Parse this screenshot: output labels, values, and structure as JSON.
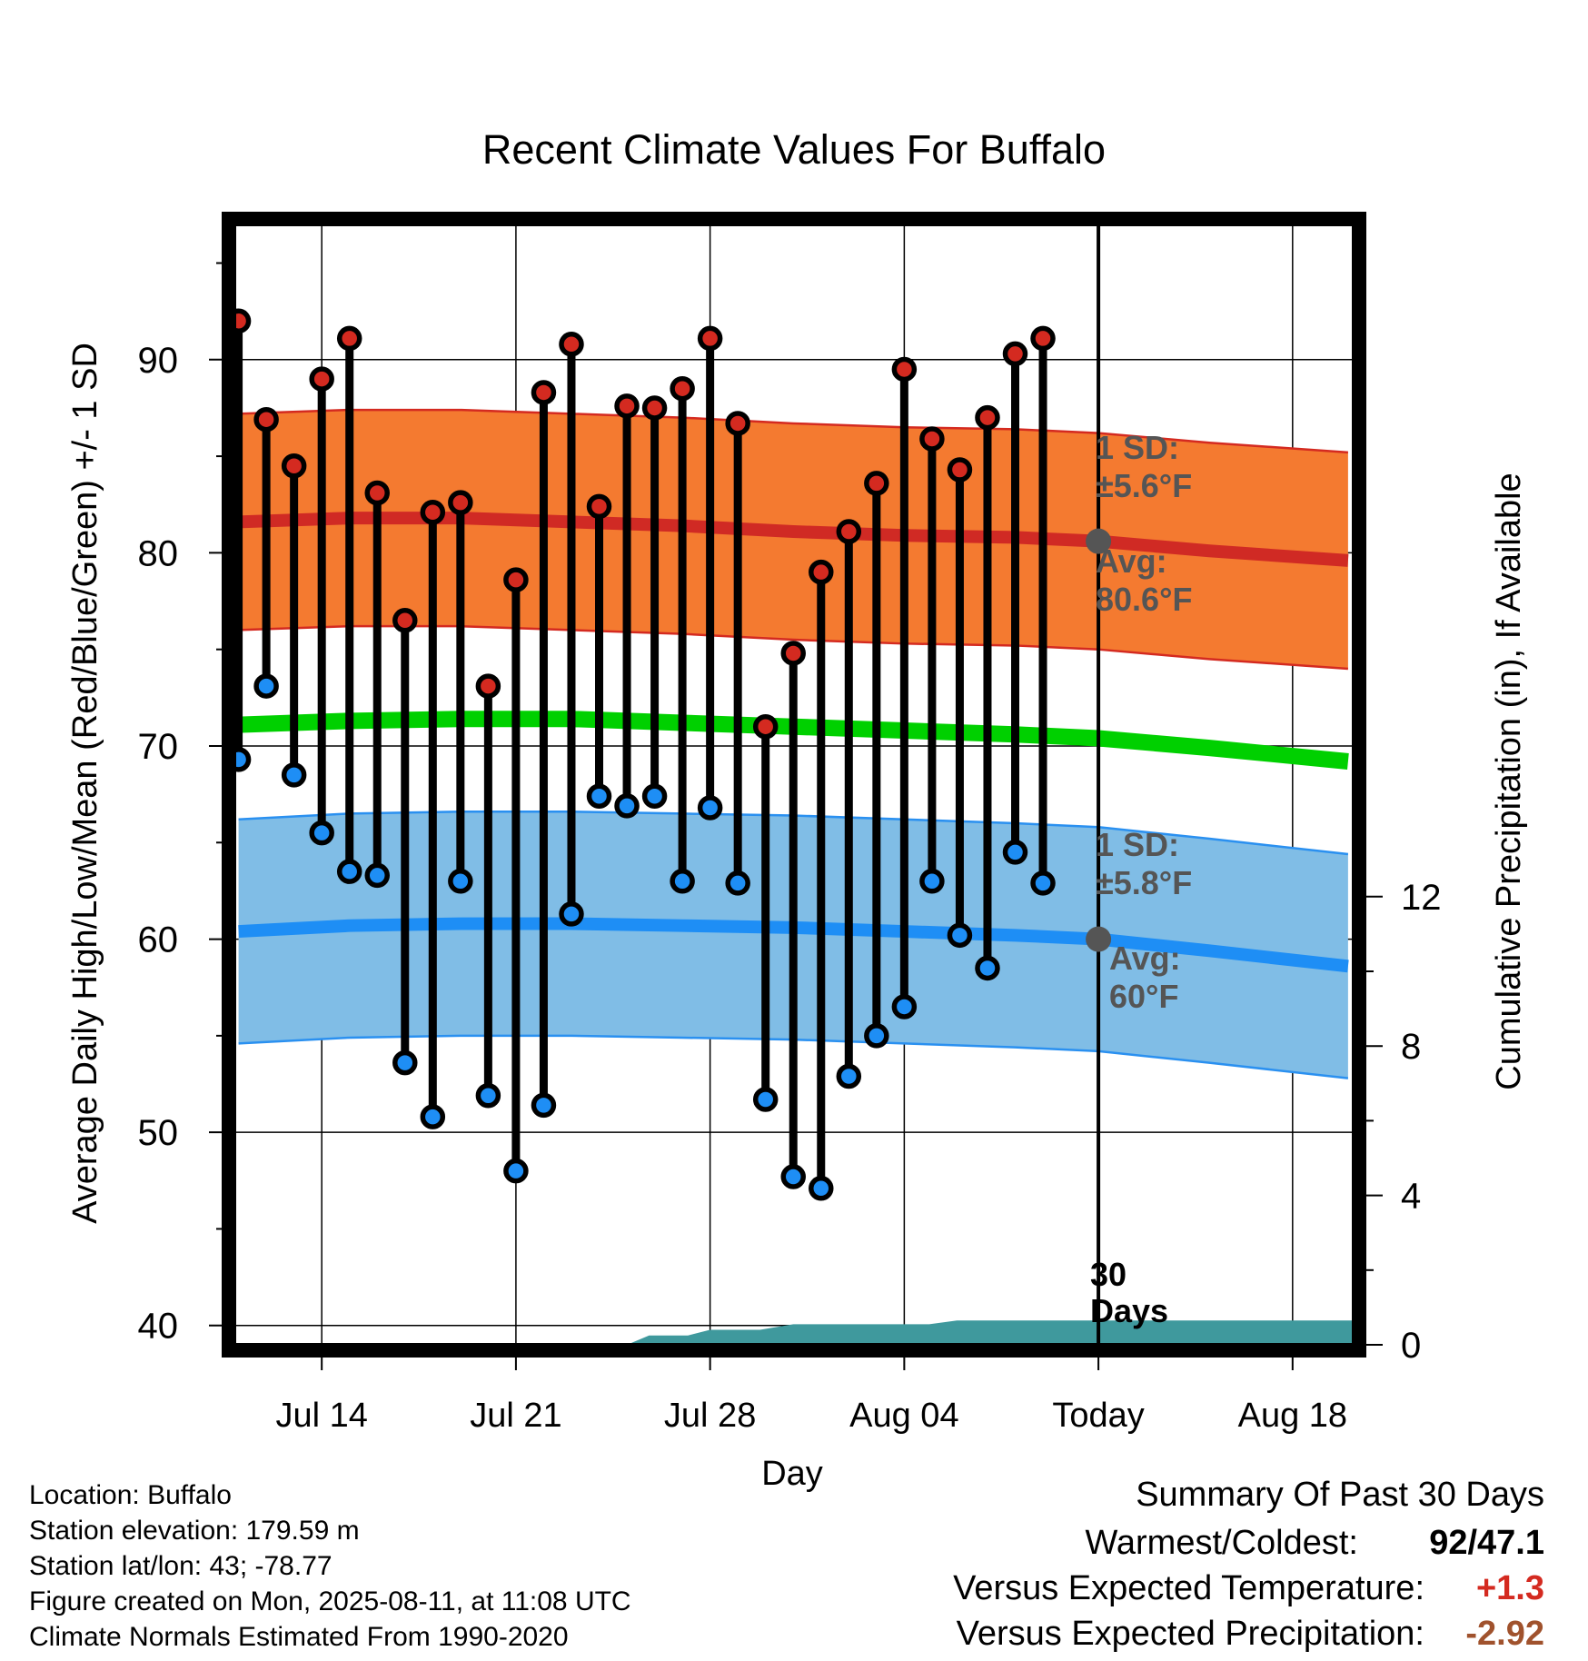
{
  "chart_data": {
    "type": "line",
    "title": "Recent Climate Values For Buffalo",
    "xlabel": "Day",
    "ylabel_left": "Average Daily High/Low/Mean (Red/Blue/Green) +/- 1 SD",
    "ylabel_right": "Cumulative Precipitation (in), If Available",
    "y_left_range": [
      39,
      97
    ],
    "y_left_ticks": [
      "40",
      "50",
      "60",
      "70",
      "80",
      "90"
    ],
    "y_right_range": [
      0,
      30
    ],
    "y_right_ticks": [
      "0",
      "4",
      "8",
      "12"
    ],
    "x_tick_labels": [
      {
        "day": 14,
        "label": "Jul 14"
      },
      {
        "day": 21,
        "label": "Jul 21"
      },
      {
        "day": 28,
        "label": "Jul 28"
      },
      {
        "day": 35,
        "label": "Aug 04"
      },
      {
        "day": 42,
        "label": "Today"
      },
      {
        "day": 49,
        "label": "Aug 18"
      }
    ],
    "x_range": [
      10.85,
      51.2
    ],
    "today_marker": {
      "day": 42,
      "label_line1": "30",
      "label_line2": "Days"
    },
    "observed": {
      "days": [
        11,
        12,
        13,
        14,
        15,
        16,
        17,
        18,
        19,
        20,
        21,
        22,
        23,
        24,
        25,
        26,
        27,
        28,
        29,
        30,
        31,
        32,
        33,
        34,
        35,
        36,
        37,
        38,
        39,
        40,
        41
      ],
      "highs": [
        92.0,
        86.9,
        84.5,
        89.0,
        91.1,
        83.1,
        76.5,
        82.1,
        82.6,
        73.1,
        78.6,
        88.3,
        90.8,
        82.4,
        87.6,
        87.5,
        88.5,
        91.1,
        86.7,
        71.0,
        74.8,
        79.0,
        81.1,
        83.6,
        89.5,
        85.9,
        84.3,
        87.0,
        90.3,
        91.1,
        null
      ],
      "lows": [
        69.3,
        73.1,
        68.5,
        65.5,
        63.5,
        63.3,
        53.6,
        50.8,
        63.0,
        51.9,
        48.0,
        51.4,
        61.3,
        67.4,
        66.9,
        67.4,
        63.0,
        66.8,
        62.9,
        51.7,
        47.7,
        47.1,
        52.9,
        55.0,
        56.5,
        63.0,
        60.2,
        58.5,
        64.5,
        62.9,
        null
      ]
    },
    "normals": {
      "days": [
        11,
        15,
        19,
        23,
        27,
        31,
        35,
        39,
        42,
        46,
        51
      ],
      "avg_high": [
        81.6,
        81.8,
        81.8,
        81.6,
        81.4,
        81.1,
        80.9,
        80.8,
        80.6,
        80.1,
        79.6
      ],
      "high_sd": 5.6,
      "avg_low": [
        60.4,
        60.7,
        60.8,
        60.8,
        60.7,
        60.6,
        60.4,
        60.2,
        60.0,
        59.4,
        58.6
      ],
      "low_sd": 5.8,
      "avg_mean": [
        71.1,
        71.3,
        71.4,
        71.4,
        71.2,
        71.0,
        70.8,
        70.6,
        70.4,
        69.9,
        69.2
      ]
    },
    "precip_cumulative": {
      "days": [
        10.85,
        25,
        25.8,
        26.5,
        27.2,
        28,
        29.8,
        31,
        31.9,
        32.9,
        33.9,
        34.9,
        35.9,
        36.9,
        37.9,
        38.9,
        39.9,
        40.9,
        41.9,
        42.9,
        43.9,
        44.9,
        45.9,
        46.9,
        47.9,
        48.9,
        49.9,
        50.9,
        51.2
      ],
      "values": [
        0,
        0,
        0.25,
        0.25,
        0.25,
        0.4,
        0.4,
        0.55,
        0.55,
        0.55,
        0.55,
        0.55,
        0.55,
        0.65,
        0.65,
        0.65,
        0.65,
        0.65,
        0.65,
        0.65,
        0.65,
        0.65,
        0.65,
        0.65,
        0.65,
        0.65,
        0.65,
        0.65,
        0.65
      ]
    },
    "annotations": {
      "high_sd_line1": "1 SD:",
      "high_sd_line2": "±5.6°F",
      "high_avg_line1": "Avg:",
      "high_avg_line2": "80.6°F",
      "low_sd_line1": "1 SD:",
      "low_sd_line2": "±5.8°F",
      "low_avg_line1": "Avg:",
      "low_avg_line2": "60°F"
    },
    "colors": {
      "high_band": "#f47a30",
      "high_edge": "#d42a20",
      "high_avg_line": "#d02a24",
      "low_band": "#80bde6",
      "low_edge": "#2a90f0",
      "low_avg_line": "#1e8ef5",
      "mean_line": "#00d000",
      "precip": "#3f999d",
      "high_dot": "#d42a20",
      "low_dot": "#1e8ef5",
      "annotation": "#555555"
    }
  },
  "footer": {
    "location": "Location: Buffalo",
    "elevation": "Station elevation: 179.59 m",
    "latlon": "Station lat/lon: 43; -78.77",
    "created": "Figure created on Mon, 2025-08-11, at 11:08 UTC",
    "normals_source": "Climate Normals Estimated From 1990-2020"
  },
  "summary": {
    "heading": "Summary Of Past 30 Days",
    "warmest_coldest_label": "Warmest/Coldest:",
    "warmest_coldest_value": "92/47.1",
    "temp_label": "Versus Expected Temperature:",
    "temp_value": "+1.3",
    "temp_color": "#d42a20",
    "precip_label": "Versus Expected Precipitation:",
    "precip_value": "-2.92",
    "precip_color": "#a0522d"
  }
}
